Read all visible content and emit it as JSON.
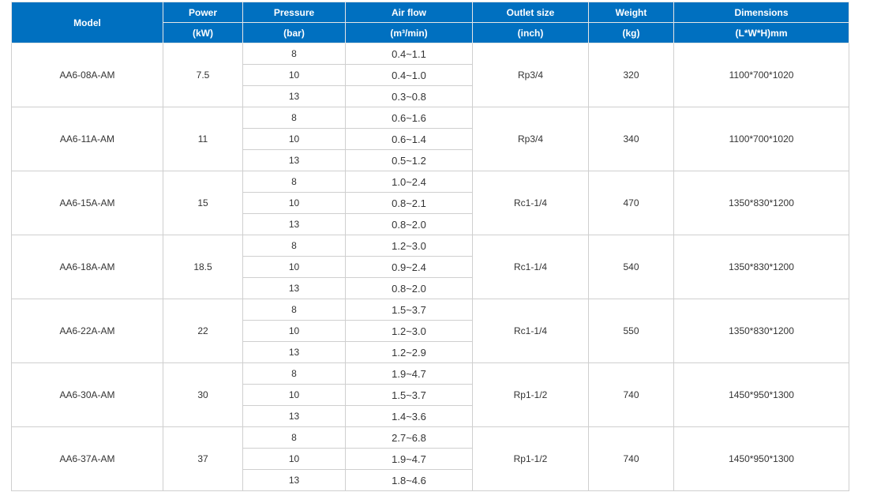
{
  "header": {
    "model": "Model",
    "power": {
      "label": "Power",
      "unit": "(kW)"
    },
    "pressure": {
      "label": "Pressure",
      "unit": "(bar)"
    },
    "airflow": {
      "label": "Air flow",
      "unit": "(m³/min)"
    },
    "outlet": {
      "label": "Outlet size",
      "unit": "(inch)"
    },
    "weight": {
      "label": "Weight",
      "unit": "(kg)"
    },
    "dimensions": {
      "label": "Dimensions",
      "unit": "(L*W*H)mm"
    }
  },
  "colors": {
    "header_bg": "#0070c0",
    "border": "#cfcfcf"
  },
  "rows": [
    {
      "model": "AA6-08A-AM",
      "power": "7.5",
      "outlet": "Rp3/4",
      "weight": "320",
      "dimensions": "1100*700*1020",
      "variants": [
        {
          "pressure": "8",
          "airflow": "0.4~1.1"
        },
        {
          "pressure": "10",
          "airflow": "0.4~1.0"
        },
        {
          "pressure": "13",
          "airflow": "0.3~0.8"
        }
      ]
    },
    {
      "model": "AA6-11A-AM",
      "power": "11",
      "outlet": "Rp3/4",
      "weight": "340",
      "dimensions": "1100*700*1020",
      "variants": [
        {
          "pressure": "8",
          "airflow": "0.6~1.6"
        },
        {
          "pressure": "10",
          "airflow": "0.6~1.4"
        },
        {
          "pressure": "13",
          "airflow": "0.5~1.2"
        }
      ]
    },
    {
      "model": "AA6-15A-AM",
      "power": "15",
      "outlet": "Rc1-1/4",
      "weight": "470",
      "dimensions": "1350*830*1200",
      "variants": [
        {
          "pressure": "8",
          "airflow": "1.0~2.4"
        },
        {
          "pressure": "10",
          "airflow": "0.8~2.1"
        },
        {
          "pressure": "13",
          "airflow": "0.8~2.0"
        }
      ]
    },
    {
      "model": "AA6-18A-AM",
      "power": "18.5",
      "outlet": "Rc1-1/4",
      "weight": "540",
      "dimensions": "1350*830*1200",
      "variants": [
        {
          "pressure": "8",
          "airflow": "1.2~3.0"
        },
        {
          "pressure": "10",
          "airflow": "0.9~2.4"
        },
        {
          "pressure": "13",
          "airflow": "0.8~2.0"
        }
      ]
    },
    {
      "model": "AA6-22A-AM",
      "power": "22",
      "outlet": "Rc1-1/4",
      "weight": "550",
      "dimensions": "1350*830*1200",
      "variants": [
        {
          "pressure": "8",
          "airflow": "1.5~3.7"
        },
        {
          "pressure": "10",
          "airflow": "1.2~3.0"
        },
        {
          "pressure": "13",
          "airflow": "1.2~2.9"
        }
      ]
    },
    {
      "model": "AA6-30A-AM",
      "power": "30",
      "outlet": "Rp1-1/2",
      "weight": "740",
      "dimensions": "1450*950*1300",
      "variants": [
        {
          "pressure": "8",
          "airflow": "1.9~4.7"
        },
        {
          "pressure": "10",
          "airflow": "1.5~3.7"
        },
        {
          "pressure": "13",
          "airflow": "1.4~3.6"
        }
      ]
    },
    {
      "model": "AA6-37A-AM",
      "power": "37",
      "outlet": "Rp1-1/2",
      "weight": "740",
      "dimensions": "1450*950*1300",
      "variants": [
        {
          "pressure": "8",
          "airflow": "2.7~6.8"
        },
        {
          "pressure": "10",
          "airflow": "1.9~4.7"
        },
        {
          "pressure": "13",
          "airflow": "1.8~4.6"
        }
      ]
    }
  ]
}
